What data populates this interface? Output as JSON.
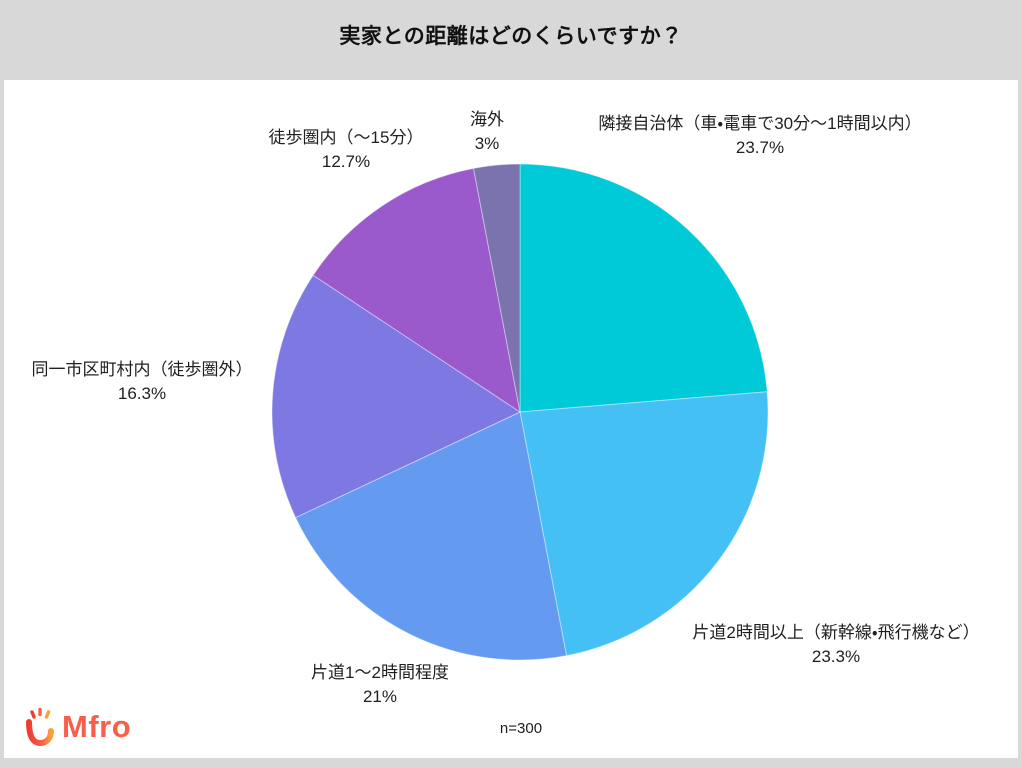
{
  "header": {
    "title": "実家との距離はどのくらいですか？"
  },
  "footer": {
    "sample_size": "n=300",
    "logo_text": "Mfro"
  },
  "theme": {
    "background": "#d8d8d8",
    "panel": "#ffffff",
    "text": "#1f1f1f",
    "title-color": "#111111",
    "logo-color": "#f85f4b",
    "logo-accent": "#f9a23c"
  },
  "chart_data": {
    "type": "pie",
    "title": "実家との距離はどのくらいですか？",
    "sample_note": "n=300",
    "start_angle_deg": 0,
    "direction": "clockwise",
    "legend_position": "outside-labels",
    "slices": [
      {
        "label": "隣接自治体（車・電車で30分〜1時間以内）",
        "value": 23.7,
        "pct_label": "23.7%",
        "color": "#00c9d8"
      },
      {
        "label": "片道2時間以上（新幹線・飛行機など）",
        "value": 23.3,
        "pct_label": "23.3%",
        "color": "#45c0f5"
      },
      {
        "label": "片道1〜2時間程度",
        "value": 21,
        "pct_label": "21%",
        "color": "#649af0"
      },
      {
        "label": "同一市区町村内（徒歩圏外）",
        "value": 16.3,
        "pct_label": "16.3%",
        "color": "#7d78e2"
      },
      {
        "label": "徒歩圏内（〜15分）",
        "value": 12.7,
        "pct_label": "12.7%",
        "color": "#9a5acc"
      },
      {
        "label": "海外",
        "value": 3,
        "pct_label": "3%",
        "color": "#7a73ad"
      }
    ]
  }
}
